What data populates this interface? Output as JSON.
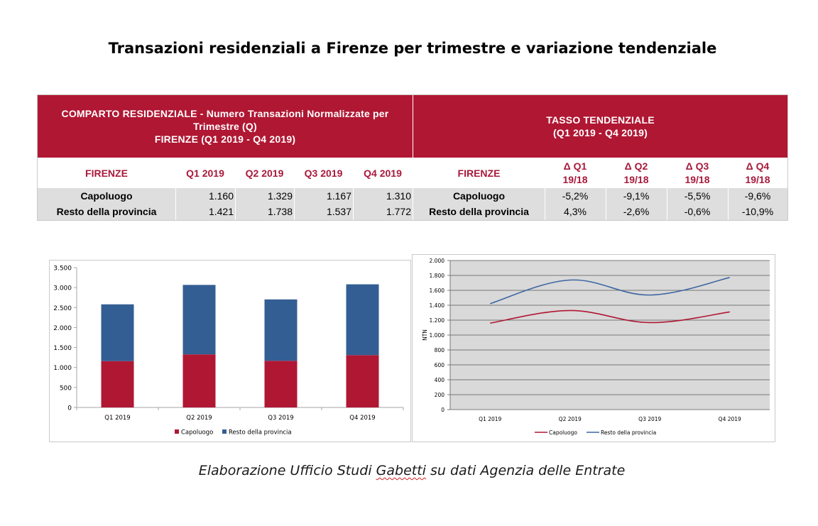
{
  "title": "Transazioni residenziali a Firenze per trimestre e variazione tendenziale",
  "table": {
    "left_header": {
      "line1": "COMPARTO RESIDENZIALE - Numero Transazioni Normalizzate per",
      "line2": "Trimestre (Q)",
      "line3": "FIRENZE (Q1 2019 - Q4 2019)"
    },
    "right_header": {
      "line1": "TASSO TENDENZIALE",
      "line2": "(Q1 2019 - Q4 2019)"
    },
    "left_columns": [
      "FIRENZE",
      "Q1 2019",
      "Q2 2019",
      "Q3 2019",
      "Q4 2019"
    ],
    "right_columns": [
      "FIRENZE",
      "Δ Q1 19/18",
      "Δ Q2 19/18",
      "Δ Q3 19/18",
      "Δ Q4 19/18"
    ],
    "rows": [
      {
        "label": "Capoluogo",
        "values": [
          "1.160",
          "1.329",
          "1.167",
          "1.310"
        ],
        "changes": [
          "-5,2%",
          "-9,1%",
          "-5,5%",
          "-9,6%"
        ]
      },
      {
        "label": "Resto della provincia",
        "values": [
          "1.421",
          "1.738",
          "1.537",
          "1.772"
        ],
        "changes": [
          "4,3%",
          "-2,6%",
          "-0,6%",
          "-10,9%"
        ]
      }
    ]
  },
  "chart_data": [
    {
      "type": "bar",
      "stacked": true,
      "categories": [
        "Q1 2019",
        "Q2 2019",
        "Q3 2019",
        "Q4 2019"
      ],
      "series": [
        {
          "name": "Capoluogo",
          "values": [
            1160,
            1329,
            1167,
            1310
          ],
          "color": "#b01733"
        },
        {
          "name": "Resto della provincia",
          "values": [
            1421,
            1738,
            1537,
            1772
          ],
          "color": "#335e93"
        }
      ],
      "ylim": [
        0,
        3500
      ],
      "yticks": [
        0,
        500,
        1000,
        1500,
        2000,
        2500,
        3000,
        3500
      ],
      "ytick_labels": [
        "0",
        "500",
        "1.000",
        "1.500",
        "2.000",
        "2.500",
        "3.000",
        "3.500"
      ],
      "xlabel": "",
      "ylabel": "",
      "legend": "bottom"
    },
    {
      "type": "line",
      "smooth": true,
      "categories": [
        "Q1 2019",
        "Q2 2019",
        "Q3 2019",
        "Q4 2019"
      ],
      "series": [
        {
          "name": "Capoluogo",
          "values": [
            1160,
            1329,
            1167,
            1310
          ],
          "color": "#b01733"
        },
        {
          "name": "Resto della provincia",
          "values": [
            1421,
            1738,
            1537,
            1772
          ],
          "color": "#3d66a0"
        }
      ],
      "ylim": [
        0,
        2000
      ],
      "yticks": [
        0,
        200,
        400,
        600,
        800,
        1000,
        1200,
        1400,
        1600,
        1800,
        2000
      ],
      "ytick_labels": [
        "0",
        "200",
        "400",
        "600",
        "800",
        "1.000",
        "1.200",
        "1.400",
        "1.600",
        "1.800",
        "2.000"
      ],
      "ylabel": "NTN",
      "grid": true,
      "plot_background": "#d9d9d9",
      "legend": "bottom"
    }
  ],
  "caption": {
    "prefix": "Elaborazione Ufficio Studi ",
    "name": "Gabetti",
    "suffix": " su dati Agenzia delle Entrate"
  }
}
